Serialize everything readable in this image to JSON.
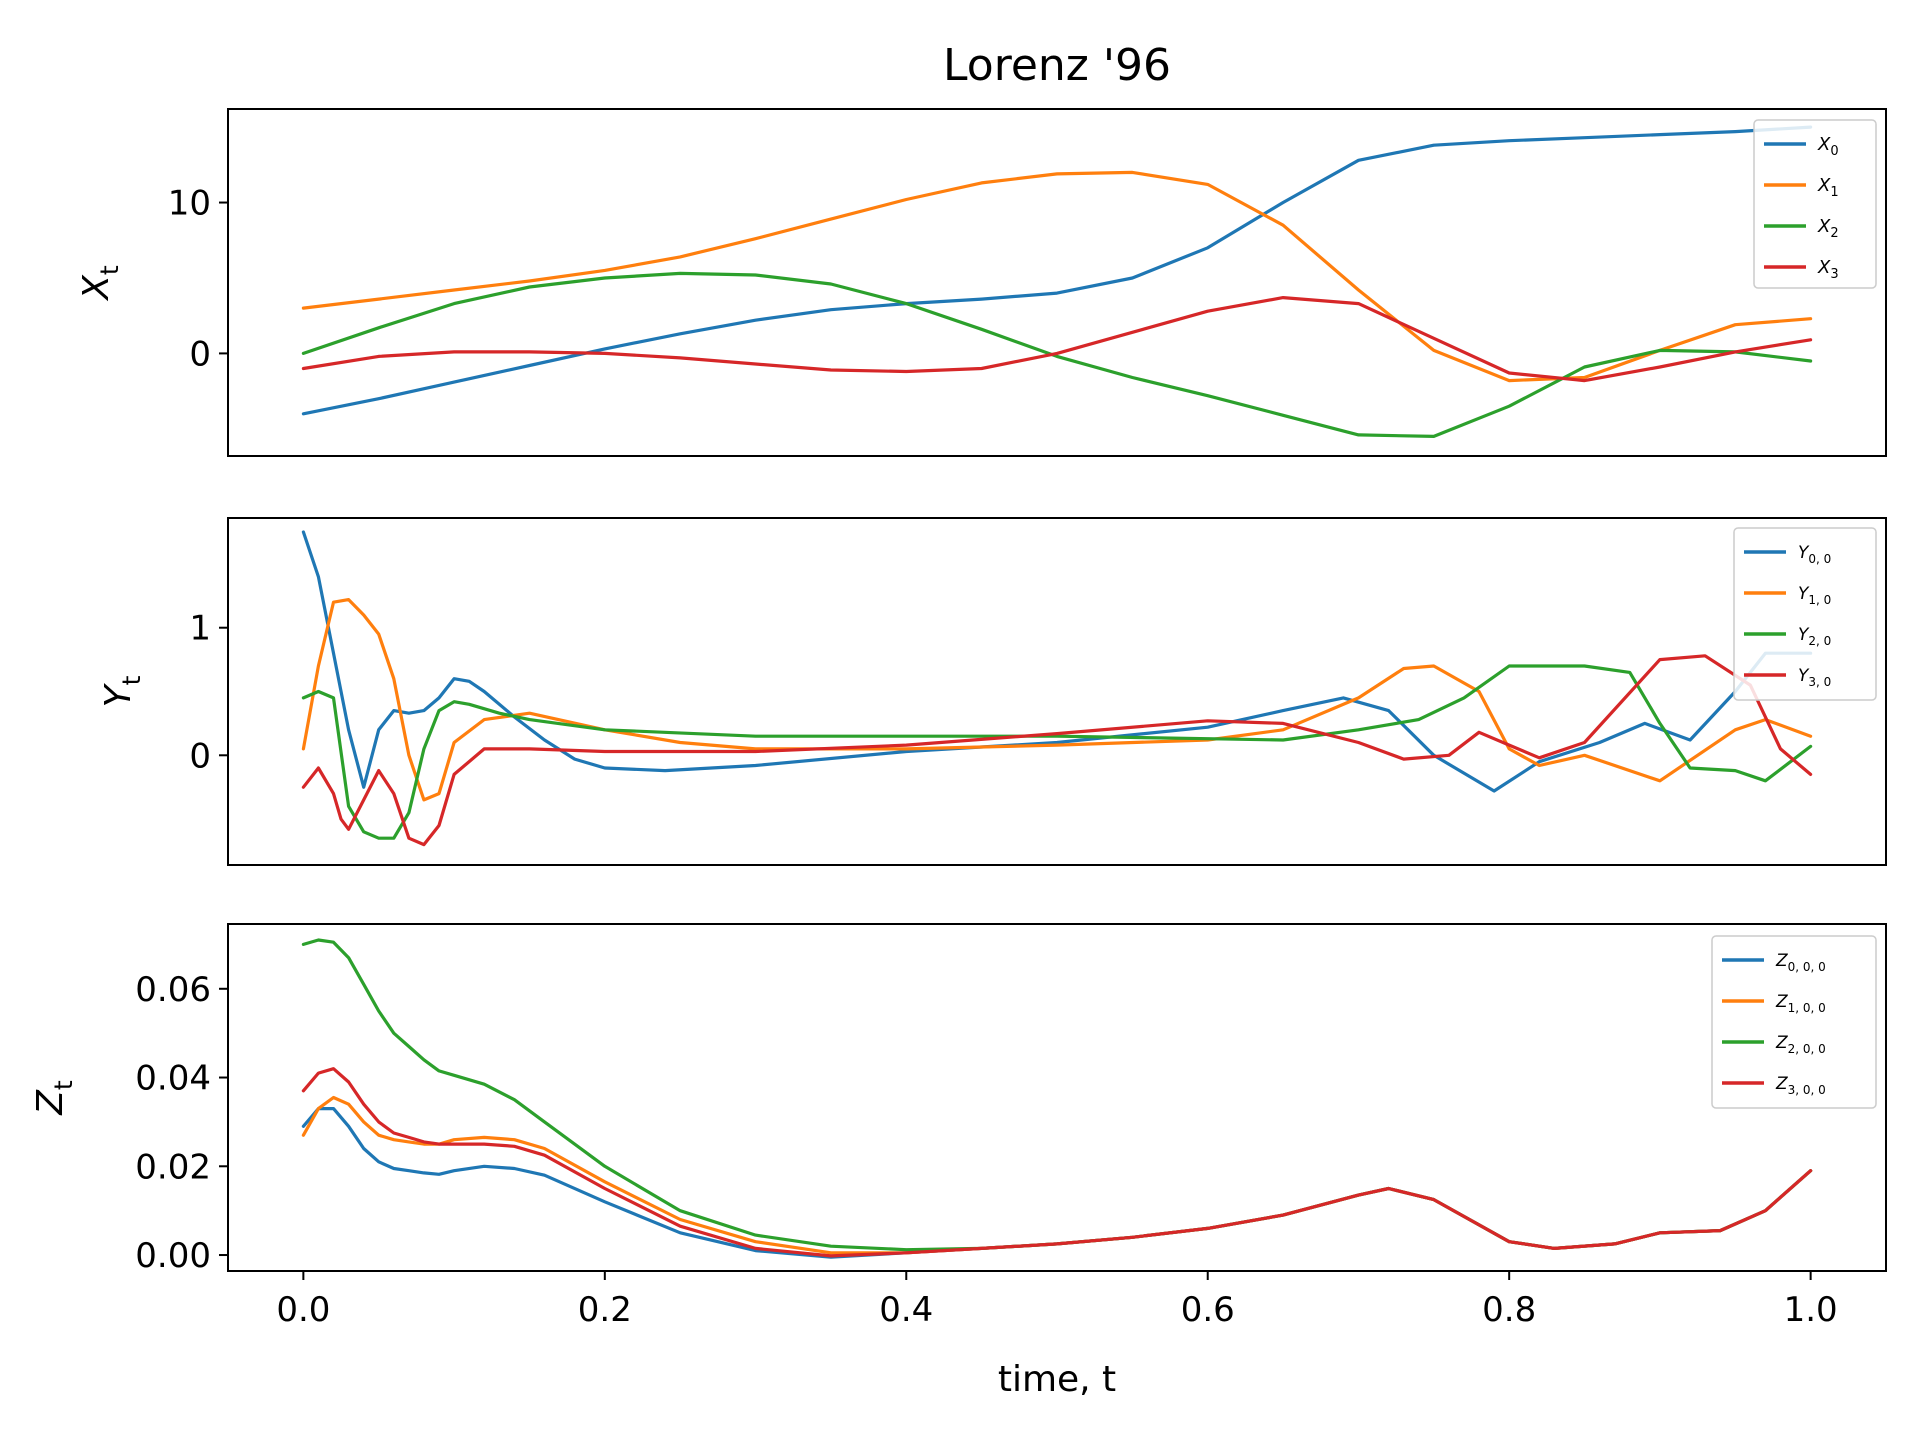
{
  "figure": {
    "title": "Lorenz '96",
    "xlabel": "time, t"
  },
  "colors": {
    "blue": "#1f77b4",
    "orange": "#ff7f0e",
    "green": "#2ca02c",
    "red": "#d62728"
  },
  "chart_data": [
    {
      "type": "line",
      "title": "Lorenz '96",
      "ylabel": "X_t",
      "xlim": [
        -0.05,
        1.05
      ],
      "ylim": [
        -6.8,
        16.2
      ],
      "grid": false,
      "legend_position": "top-right",
      "xticks": [],
      "yticks": [
        0,
        10
      ],
      "ytick_labels": [
        "0",
        "10"
      ],
      "series": [
        {
          "name": "X_0",
          "color": "#1f77b4",
          "x": [
            0,
            0.05,
            0.1,
            0.15,
            0.2,
            0.25,
            0.3,
            0.35,
            0.4,
            0.45,
            0.5,
            0.55,
            0.6,
            0.65,
            0.7,
            0.75,
            0.8,
            0.85,
            0.9,
            0.95,
            1.0
          ],
          "y": [
            -4.0,
            -3.0,
            -1.9,
            -0.8,
            0.3,
            1.3,
            2.2,
            2.9,
            3.3,
            3.6,
            4.0,
            5.0,
            7.0,
            10.0,
            12.8,
            13.8,
            14.1,
            14.3,
            14.5,
            14.7,
            15.0
          ]
        },
        {
          "name": "X_1",
          "color": "#ff7f0e",
          "x": [
            0,
            0.05,
            0.1,
            0.15,
            0.2,
            0.25,
            0.3,
            0.35,
            0.4,
            0.45,
            0.5,
            0.55,
            0.6,
            0.65,
            0.7,
            0.75,
            0.8,
            0.85,
            0.9,
            0.95,
            1.0
          ],
          "y": [
            3.0,
            3.6,
            4.2,
            4.8,
            5.5,
            6.4,
            7.6,
            8.9,
            10.2,
            11.3,
            11.9,
            12.0,
            11.2,
            8.5,
            4.2,
            0.2,
            -1.8,
            -1.6,
            0.2,
            1.9,
            2.3
          ]
        },
        {
          "name": "X_2",
          "color": "#2ca02c",
          "x": [
            0,
            0.05,
            0.1,
            0.15,
            0.2,
            0.25,
            0.3,
            0.35,
            0.4,
            0.45,
            0.5,
            0.55,
            0.6,
            0.65,
            0.7,
            0.75,
            0.8,
            0.85,
            0.9,
            0.95,
            1.0
          ],
          "y": [
            0.0,
            1.7,
            3.3,
            4.4,
            5.0,
            5.3,
            5.2,
            4.6,
            3.3,
            1.6,
            -0.2,
            -1.6,
            -2.8,
            -4.1,
            -5.4,
            -5.5,
            -3.5,
            -0.9,
            0.2,
            0.1,
            -0.5
          ]
        },
        {
          "name": "X_3",
          "color": "#d62728",
          "x": [
            0,
            0.05,
            0.1,
            0.15,
            0.2,
            0.25,
            0.3,
            0.35,
            0.4,
            0.45,
            0.5,
            0.55,
            0.6,
            0.65,
            0.7,
            0.75,
            0.8,
            0.85,
            0.9,
            0.95,
            1.0
          ],
          "y": [
            -1.0,
            -0.2,
            0.1,
            0.1,
            0.0,
            -0.3,
            -0.7,
            -1.1,
            -1.2,
            -1.0,
            0.0,
            1.4,
            2.8,
            3.7,
            3.3,
            1.0,
            -1.3,
            -1.8,
            -0.9,
            0.1,
            0.9
          ]
        }
      ]
    },
    {
      "type": "line",
      "ylabel": "Y_t",
      "xlim": [
        -0.05,
        1.05
      ],
      "ylim": [
        -0.86,
        1.86
      ],
      "grid": false,
      "legend_position": "top-right",
      "xticks": [],
      "yticks": [
        0,
        1
      ],
      "ytick_labels": [
        "0",
        "1"
      ],
      "series": [
        {
          "name": "Y_{0,0}",
          "color": "#1f77b4",
          "x": [
            0,
            0.01,
            0.02,
            0.03,
            0.04,
            0.05,
            0.06,
            0.07,
            0.08,
            0.09,
            0.1,
            0.11,
            0.12,
            0.14,
            0.16,
            0.18,
            0.2,
            0.24,
            0.3,
            0.4,
            0.5,
            0.6,
            0.65,
            0.69,
            0.72,
            0.75,
            0.79,
            0.82,
            0.86,
            0.89,
            0.92,
            0.95,
            0.97,
            1.0
          ],
          "y": [
            1.75,
            1.4,
            0.8,
            0.2,
            -0.25,
            0.2,
            0.35,
            0.33,
            0.35,
            0.45,
            0.6,
            0.58,
            0.5,
            0.3,
            0.12,
            -0.03,
            -0.1,
            -0.12,
            -0.08,
            0.03,
            0.1,
            0.22,
            0.35,
            0.45,
            0.35,
            0.0,
            -0.28,
            -0.05,
            0.1,
            0.25,
            0.12,
            0.5,
            0.8,
            0.8
          ]
        },
        {
          "name": "Y_{1,0}",
          "color": "#ff7f0e",
          "x": [
            0,
            0.01,
            0.02,
            0.03,
            0.04,
            0.05,
            0.06,
            0.07,
            0.08,
            0.09,
            0.1,
            0.12,
            0.15,
            0.2,
            0.25,
            0.3,
            0.4,
            0.5,
            0.6,
            0.65,
            0.7,
            0.73,
            0.75,
            0.78,
            0.8,
            0.82,
            0.85,
            0.9,
            0.95,
            0.97,
            1.0
          ],
          "y": [
            0.05,
            0.7,
            1.2,
            1.22,
            1.1,
            0.95,
            0.6,
            0.0,
            -0.35,
            -0.3,
            0.1,
            0.28,
            0.33,
            0.2,
            0.1,
            0.05,
            0.05,
            0.08,
            0.12,
            0.2,
            0.45,
            0.68,
            0.7,
            0.5,
            0.05,
            -0.08,
            0.0,
            -0.2,
            0.2,
            0.28,
            0.15
          ]
        },
        {
          "name": "Y_{2,0}",
          "color": "#2ca02c",
          "x": [
            0,
            0.01,
            0.02,
            0.03,
            0.04,
            0.05,
            0.06,
            0.07,
            0.08,
            0.09,
            0.1,
            0.11,
            0.13,
            0.15,
            0.2,
            0.3,
            0.4,
            0.5,
            0.6,
            0.65,
            0.7,
            0.74,
            0.77,
            0.8,
            0.85,
            0.88,
            0.9,
            0.92,
            0.95,
            0.97,
            1.0
          ],
          "y": [
            0.45,
            0.5,
            0.45,
            -0.4,
            -0.6,
            -0.65,
            -0.65,
            -0.45,
            0.05,
            0.35,
            0.42,
            0.4,
            0.33,
            0.28,
            0.2,
            0.15,
            0.15,
            0.15,
            0.13,
            0.12,
            0.2,
            0.28,
            0.45,
            0.7,
            0.7,
            0.65,
            0.25,
            -0.1,
            -0.12,
            -0.2,
            0.07
          ]
        },
        {
          "name": "Y_{3,0}",
          "color": "#d62728",
          "x": [
            0,
            0.01,
            0.02,
            0.025,
            0.03,
            0.04,
            0.05,
            0.06,
            0.07,
            0.08,
            0.09,
            0.1,
            0.12,
            0.15,
            0.2,
            0.3,
            0.4,
            0.5,
            0.6,
            0.65,
            0.7,
            0.73,
            0.76,
            0.78,
            0.8,
            0.82,
            0.85,
            0.9,
            0.93,
            0.96,
            0.98,
            1.0
          ],
          "y": [
            -0.25,
            -0.1,
            -0.3,
            -0.5,
            -0.58,
            -0.35,
            -0.12,
            -0.3,
            -0.65,
            -0.7,
            -0.55,
            -0.15,
            0.05,
            0.05,
            0.03,
            0.03,
            0.08,
            0.17,
            0.27,
            0.25,
            0.1,
            -0.03,
            0.0,
            0.18,
            0.08,
            -0.02,
            0.1,
            0.75,
            0.78,
            0.55,
            0.05,
            -0.15
          ]
        }
      ]
    },
    {
      "type": "line",
      "ylabel": "Z_t",
      "xlabel": "time, t",
      "xlim": [
        -0.05,
        1.05
      ],
      "ylim": [
        -0.0036,
        0.0746
      ],
      "grid": false,
      "legend_position": "top-right",
      "xticks": [
        0.0,
        0.2,
        0.4,
        0.6,
        0.8,
        1.0
      ],
      "xtick_labels": [
        "0.0",
        "0.2",
        "0.4",
        "0.6",
        "0.8",
        "1.0"
      ],
      "yticks": [
        0.0,
        0.02,
        0.04,
        0.06
      ],
      "ytick_labels": [
        "0.00",
        "0.02",
        "0.04",
        "0.06"
      ],
      "series": [
        {
          "name": "Z_{0,0,0}",
          "color": "#1f77b4",
          "x": [
            0,
            0.01,
            0.02,
            0.03,
            0.04,
            0.05,
            0.06,
            0.07,
            0.08,
            0.09,
            0.1,
            0.12,
            0.14,
            0.16,
            0.2,
            0.25,
            0.3,
            0.35,
            0.4,
            0.45,
            0.5,
            0.55,
            0.6,
            0.65,
            0.7,
            0.72,
            0.75,
            0.8,
            0.83,
            0.87,
            0.9,
            0.94,
            0.97,
            1.0
          ],
          "y": [
            0.029,
            0.033,
            0.033,
            0.029,
            0.024,
            0.021,
            0.0195,
            0.019,
            0.0185,
            0.0182,
            0.019,
            0.02,
            0.0195,
            0.018,
            0.012,
            0.005,
            0.001,
            -0.0005,
            0.0005,
            0.0015,
            0.0025,
            0.004,
            0.006,
            0.009,
            0.0135,
            0.015,
            0.0125,
            0.003,
            0.0015,
            0.0025,
            0.005,
            0.0055,
            0.01,
            0.019
          ]
        },
        {
          "name": "Z_{1,0,0}",
          "color": "#ff7f0e",
          "x": [
            0,
            0.01,
            0.02,
            0.03,
            0.04,
            0.05,
            0.06,
            0.07,
            0.08,
            0.09,
            0.1,
            0.12,
            0.14,
            0.16,
            0.2,
            0.25,
            0.3,
            0.35,
            0.4,
            0.45,
            0.5,
            0.55,
            0.6,
            0.65,
            0.7,
            0.72,
            0.75,
            0.8,
            0.83,
            0.87,
            0.9,
            0.94,
            0.97,
            1.0
          ],
          "y": [
            0.027,
            0.033,
            0.0355,
            0.034,
            0.03,
            0.027,
            0.026,
            0.0255,
            0.025,
            0.025,
            0.026,
            0.0265,
            0.026,
            0.024,
            0.0165,
            0.008,
            0.003,
            0.0005,
            0.0005,
            0.0015,
            0.0025,
            0.004,
            0.006,
            0.009,
            0.0135,
            0.015,
            0.0125,
            0.003,
            0.0015,
            0.0025,
            0.005,
            0.0055,
            0.01,
            0.019
          ]
        },
        {
          "name": "Z_{2,0,0}",
          "color": "#2ca02c",
          "x": [
            0,
            0.01,
            0.02,
            0.03,
            0.04,
            0.05,
            0.06,
            0.07,
            0.08,
            0.09,
            0.1,
            0.12,
            0.14,
            0.16,
            0.2,
            0.25,
            0.3,
            0.35,
            0.4,
            0.45,
            0.5,
            0.55,
            0.6,
            0.65,
            0.7,
            0.72,
            0.75,
            0.8,
            0.83,
            0.87,
            0.9,
            0.94,
            0.97,
            1.0
          ],
          "y": [
            0.07,
            0.071,
            0.0705,
            0.067,
            0.061,
            0.055,
            0.05,
            0.047,
            0.044,
            0.0415,
            0.0405,
            0.0385,
            0.035,
            0.03,
            0.02,
            0.01,
            0.0045,
            0.002,
            0.0012,
            0.0015,
            0.0025,
            0.004,
            0.006,
            0.009,
            0.0135,
            0.015,
            0.0125,
            0.003,
            0.0015,
            0.0025,
            0.005,
            0.0055,
            0.01,
            0.019
          ]
        },
        {
          "name": "Z_{3,0,0}",
          "color": "#d62728",
          "x": [
            0,
            0.01,
            0.02,
            0.03,
            0.04,
            0.05,
            0.06,
            0.07,
            0.08,
            0.09,
            0.1,
            0.12,
            0.14,
            0.16,
            0.2,
            0.25,
            0.3,
            0.35,
            0.4,
            0.45,
            0.5,
            0.55,
            0.6,
            0.65,
            0.7,
            0.72,
            0.75,
            0.8,
            0.83,
            0.87,
            0.9,
            0.94,
            0.97,
            1.0
          ],
          "y": [
            0.037,
            0.041,
            0.042,
            0.039,
            0.034,
            0.03,
            0.0275,
            0.0265,
            0.0255,
            0.025,
            0.025,
            0.025,
            0.0245,
            0.0225,
            0.015,
            0.0065,
            0.0015,
            -0.0002,
            0.0005,
            0.0015,
            0.0025,
            0.004,
            0.006,
            0.009,
            0.0135,
            0.015,
            0.0125,
            0.003,
            0.0015,
            0.0025,
            0.005,
            0.0055,
            0.01,
            0.019
          ]
        }
      ]
    }
  ]
}
